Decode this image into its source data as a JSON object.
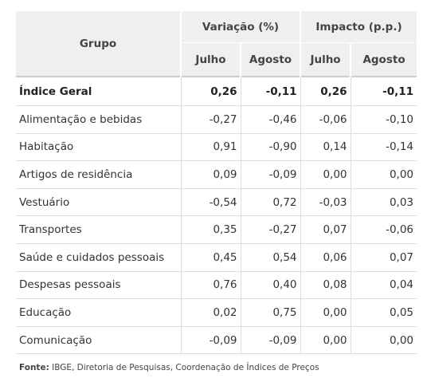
{
  "table": {
    "header": {
      "group": "Grupo",
      "variation": "Variação (%)",
      "impact": "Impacto (p.p.)",
      "var_july": "Julho",
      "var_august": "Agosto",
      "imp_july": "Julho",
      "imp_august": "Agosto"
    },
    "rows": [
      {
        "group": "Índice Geral",
        "var_july": "0,26",
        "var_august": "-0,11",
        "imp_july": "0,26",
        "imp_august": "-0,11"
      },
      {
        "group": "Alimentação e bebidas",
        "var_july": "-0,27",
        "var_august": "-0,46",
        "imp_july": "-0,06",
        "imp_august": "-0,10"
      },
      {
        "group": "Habitação",
        "var_july": "0,91",
        "var_august": "-0,90",
        "imp_july": "0,14",
        "imp_august": "-0,14"
      },
      {
        "group": "Artigos de residência",
        "var_july": "0,09",
        "var_august": "-0,09",
        "imp_july": "0,00",
        "imp_august": "0,00"
      },
      {
        "group": "Vestuário",
        "var_july": "-0,54",
        "var_august": "0,72",
        "imp_july": "-0,03",
        "imp_august": "0,03"
      },
      {
        "group": "Transportes",
        "var_july": "0,35",
        "var_august": "-0,27",
        "imp_july": "0,07",
        "imp_august": "-0,06"
      },
      {
        "group": "Saúde e cuidados pessoais",
        "var_july": "0,45",
        "var_august": "0,54",
        "imp_july": "0,06",
        "imp_august": "0,07"
      },
      {
        "group": "Despesas pessoais",
        "var_july": "0,76",
        "var_august": "0,40",
        "imp_july": "0,08",
        "imp_august": "0,04"
      },
      {
        "group": "Educação",
        "var_july": "0,02",
        "var_august": "0,75",
        "imp_july": "0,00",
        "imp_august": "0,05"
      },
      {
        "group": "Comunicação",
        "var_july": "-0,09",
        "var_august": "-0,09",
        "imp_july": "0,00",
        "imp_august": "0,00"
      }
    ]
  },
  "source": {
    "label": "Fonte:",
    "text": " IBGE, Diretoria de Pesquisas, Coordenação de Índices de Preços"
  }
}
